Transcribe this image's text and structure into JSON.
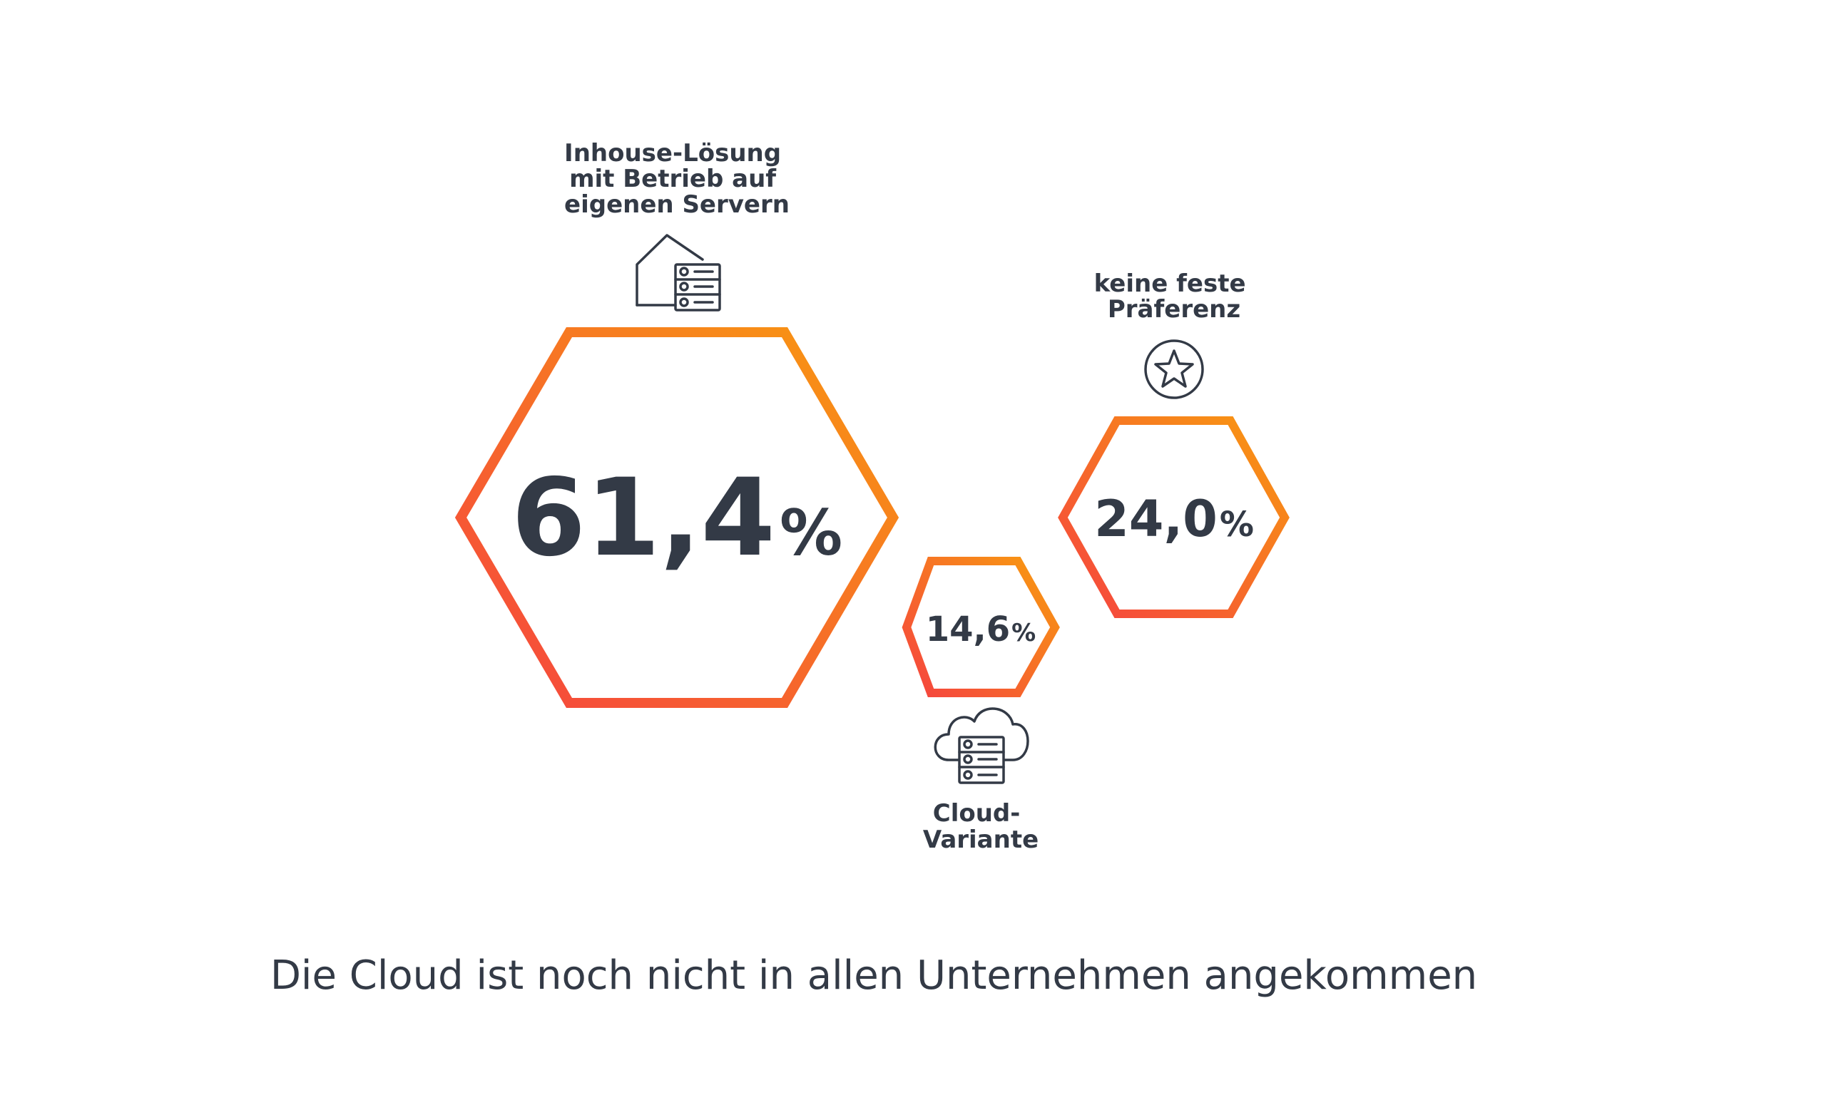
{
  "chart_data": {
    "type": "hexagon-bubble",
    "title": "Die Cloud ist noch nicht in allen Unternehmen angekommen",
    "series": [
      {
        "value_text": "61,4",
        "unit": "%",
        "value": 61.4,
        "label_lines": [
          "Inhouse-Lösung",
          "mit Betrieb auf",
          "eigenen Servern"
        ],
        "icon": "house-server-icon"
      },
      {
        "value_text": "14,6",
        "unit": "%",
        "value": 14.6,
        "label_lines": [
          "Cloud-",
          "Variante"
        ],
        "icon": "cloud-server-icon"
      },
      {
        "value_text": "24,0",
        "unit": "%",
        "value": 24.0,
        "label_lines": [
          "keine feste",
          "Präferenz"
        ],
        "icon": "star-circle-icon"
      }
    ],
    "colors": {
      "gradient_start": "#f5433f",
      "gradient_end": "#f89a10",
      "text": "#333a46"
    }
  }
}
